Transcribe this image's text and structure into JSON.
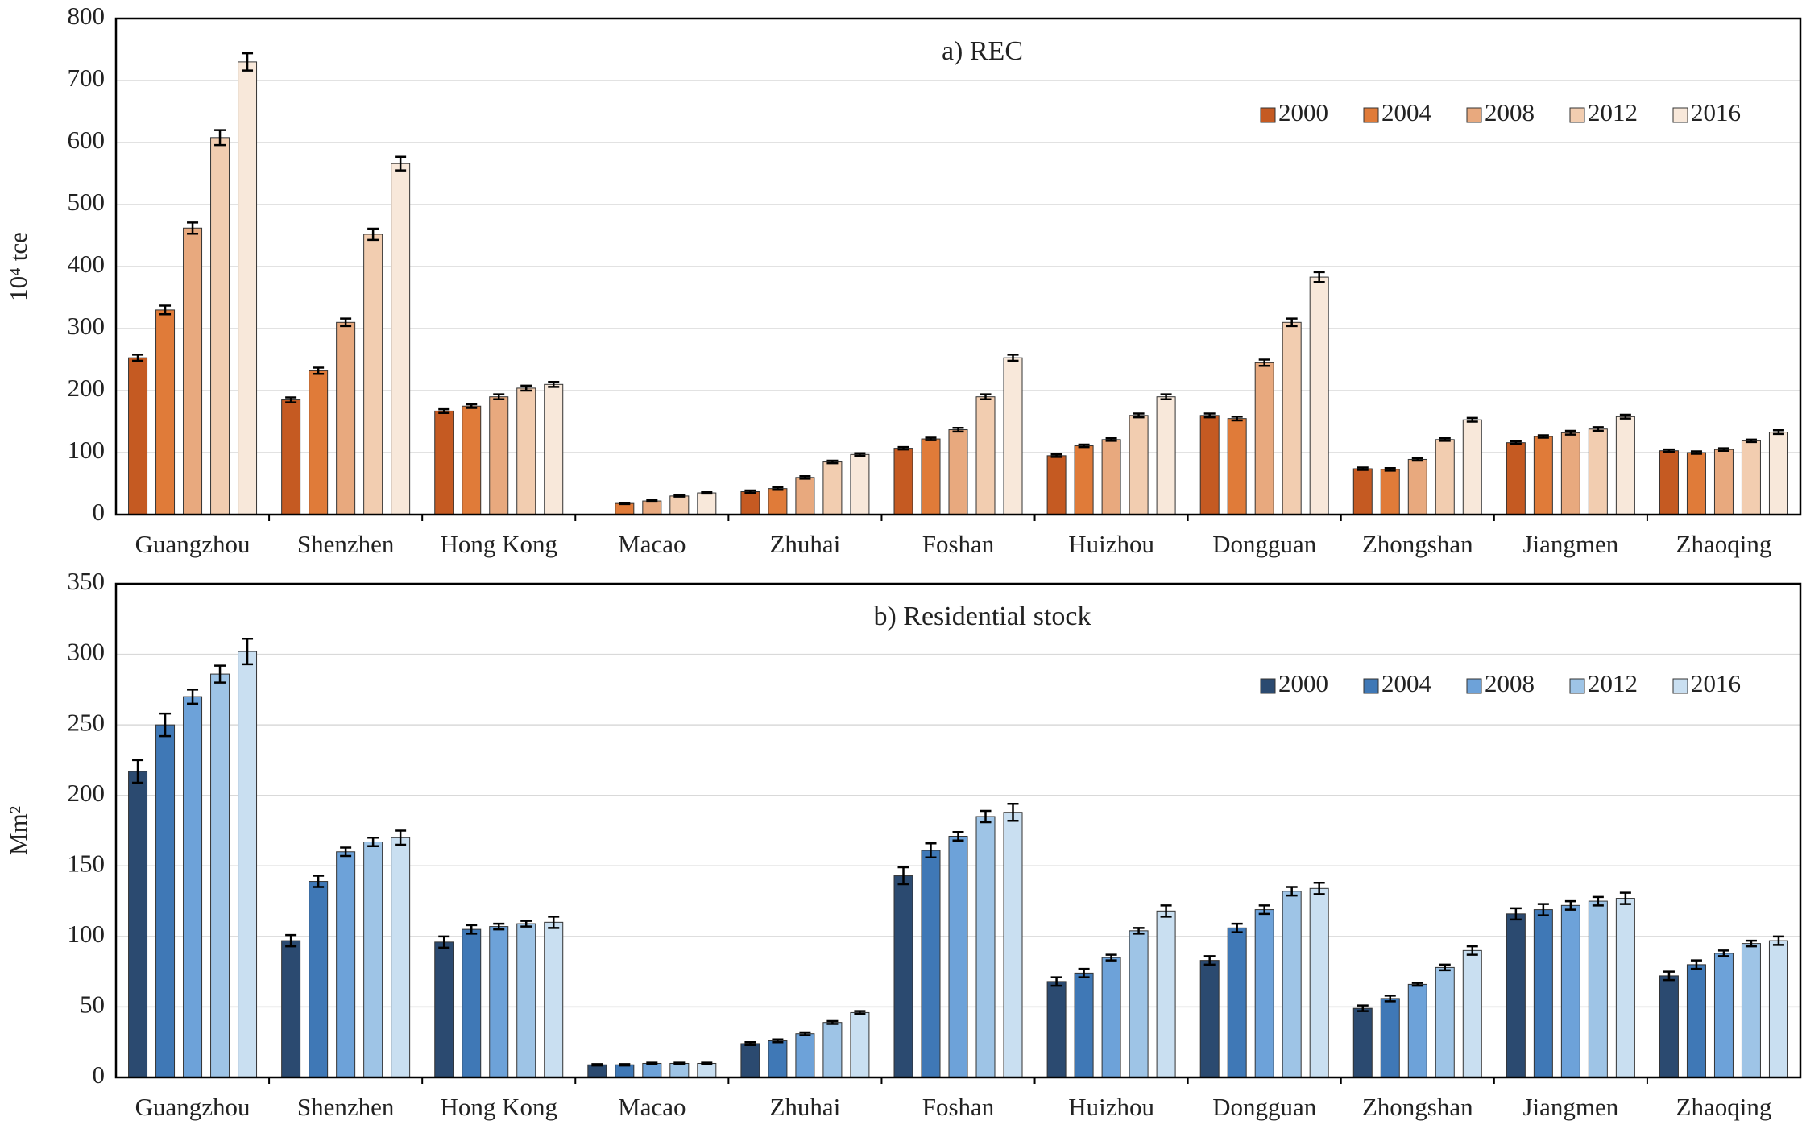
{
  "chart_data": [
    {
      "type": "bar",
      "title": "a) REC",
      "y_label": "10⁴ tce",
      "categories": [
        "Guangzhou",
        "Shenzhen",
        "Hong Kong",
        "Macao",
        "Zhuhai",
        "Foshan",
        "Huizhou",
        "Dongguan",
        "Zhongshan",
        "Jiangmen",
        "Zhaoqing"
      ],
      "series": [
        {
          "name": "2000",
          "color": "#c55a22",
          "values": [
            253,
            185,
            167,
            null,
            37,
            107,
            95,
            160,
            74,
            116,
            103
          ],
          "errors": [
            5,
            4,
            3,
            null,
            2,
            2,
            2,
            3,
            2,
            2,
            2
          ]
        },
        {
          "name": "2004",
          "color": "#e07b39",
          "values": [
            330,
            232,
            175,
            18,
            42,
            122,
            111,
            155,
            73,
            126,
            100
          ],
          "errors": [
            7,
            5,
            3,
            1,
            2,
            2,
            2,
            3,
            2,
            2,
            2
          ]
        },
        {
          "name": "2008",
          "color": "#e8a97e",
          "values": [
            462,
            310,
            190,
            22,
            60,
            137,
            121,
            245,
            89,
            132,
            105
          ],
          "errors": [
            9,
            6,
            4,
            1,
            2,
            3,
            2,
            5,
            2,
            3,
            2
          ]
        },
        {
          "name": "2012",
          "color": "#f2cdb0",
          "values": [
            608,
            452,
            204,
            30,
            85,
            190,
            160,
            310,
            121,
            138,
            119
          ],
          "errors": [
            12,
            9,
            4,
            1,
            2,
            4,
            3,
            6,
            2,
            3,
            2
          ]
        },
        {
          "name": "2016",
          "color": "#f8e8da",
          "values": [
            730,
            566,
            210,
            35,
            97,
            253,
            190,
            383,
            153,
            158,
            133
          ],
          "errors": [
            14,
            11,
            4,
            1,
            2,
            5,
            4,
            8,
            3,
            3,
            3
          ]
        }
      ],
      "ylim": [
        0,
        800
      ],
      "yticks": [
        0,
        100,
        200,
        300,
        400,
        500,
        600,
        700,
        800
      ],
      "grid": true,
      "legend": "upper right"
    },
    {
      "type": "bar",
      "title": "b) Residential stock",
      "y_label": "Mm²",
      "categories": [
        "Guangzhou",
        "Shenzhen",
        "Hong Kong",
        "Macao",
        "Zhuhai",
        "Foshan",
        "Huizhou",
        "Dongguan",
        "Zhongshan",
        "Jiangmen",
        "Zhaoqing"
      ],
      "series": [
        {
          "name": "2000",
          "color": "#2b4a70",
          "values": [
            217,
            97,
            96,
            9,
            24,
            143,
            68,
            83,
            49,
            116,
            72
          ],
          "errors": [
            8,
            4,
            4,
            0.5,
            1,
            6,
            3,
            3,
            2,
            4,
            3
          ]
        },
        {
          "name": "2004",
          "color": "#3f78b6",
          "values": [
            250,
            139,
            105,
            9,
            26,
            161,
            74,
            106,
            56,
            119,
            80
          ],
          "errors": [
            8,
            4,
            3,
            0.5,
            1,
            5,
            3,
            3,
            2,
            4,
            3
          ]
        },
        {
          "name": "2008",
          "color": "#6da2d9",
          "values": [
            270,
            160,
            107,
            10,
            31,
            171,
            85,
            119,
            66,
            122,
            88
          ],
          "errors": [
            5,
            3,
            2,
            0.5,
            1,
            3,
            2,
            3,
            1,
            3,
            2
          ]
        },
        {
          "name": "2012",
          "color": "#9ec4e6",
          "values": [
            286,
            167,
            109,
            10,
            39,
            185,
            104,
            132,
            78,
            125,
            95
          ],
          "errors": [
            6,
            3,
            2,
            0.5,
            1,
            4,
            2,
            3,
            2,
            3,
            2
          ]
        },
        {
          "name": "2016",
          "color": "#c9dff1",
          "values": [
            302,
            170,
            110,
            10,
            46,
            188,
            118,
            134,
            90,
            127,
            97
          ],
          "errors": [
            9,
            5,
            4,
            0.5,
            1,
            6,
            4,
            4,
            3,
            4,
            3
          ]
        }
      ],
      "ylim": [
        0,
        350
      ],
      "yticks": [
        0,
        50,
        100,
        150,
        200,
        250,
        300,
        350
      ],
      "grid": true,
      "legend": "upper right"
    }
  ]
}
